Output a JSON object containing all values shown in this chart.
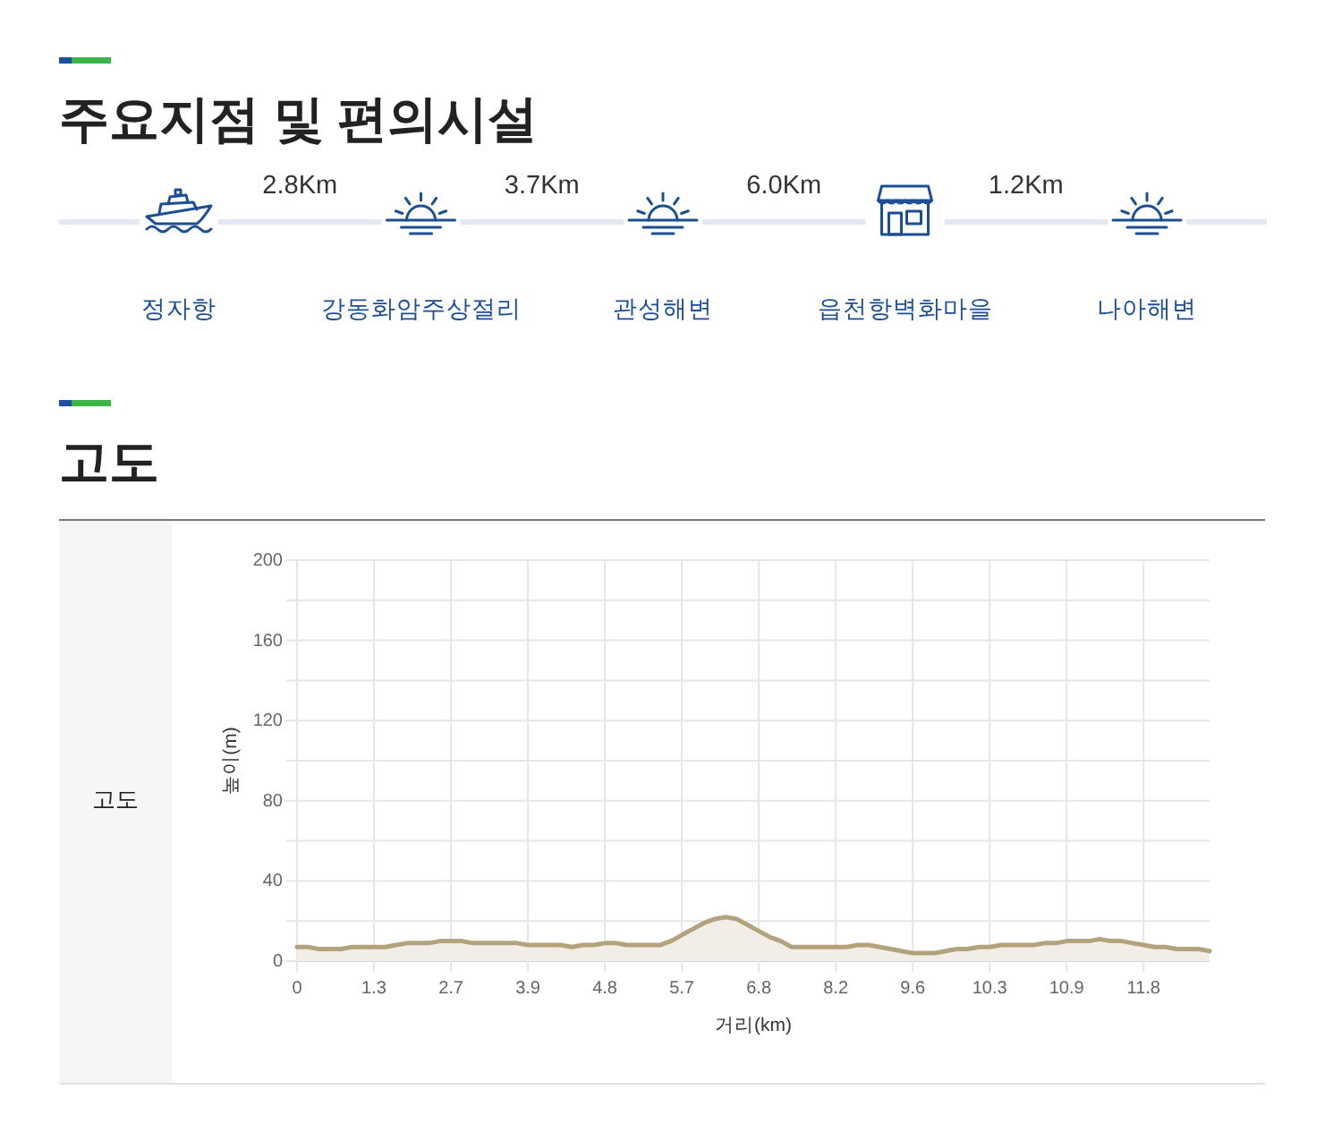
{
  "chart_data": [
    {
      "type": "other",
      "title": "주요지점 및 편의시설",
      "categories": [
        "정자항",
        "강동화암주상절리",
        "관성해변",
        "읍천항벽화마을",
        "나아해변"
      ],
      "annotations": [
        "2.8Km",
        "3.7Km",
        "6.0Km",
        "1.2Km"
      ]
    },
    {
      "type": "area",
      "title": "고도",
      "xlabel": "거리(km)",
      "ylabel": "높이(m)",
      "annotations": [
        "고도"
      ],
      "categories": [
        "0",
        null,
        null,
        null,
        null,
        null,
        null,
        "1.3",
        null,
        null,
        null,
        null,
        null,
        null,
        "2.7",
        null,
        null,
        null,
        null,
        null,
        null,
        "3.9",
        null,
        null,
        null,
        null,
        null,
        null,
        "4.8",
        null,
        null,
        null,
        null,
        null,
        null,
        "5.7",
        null,
        null,
        null,
        null,
        null,
        null,
        "6.8",
        null,
        null,
        null,
        null,
        null,
        null,
        "8.2",
        null,
        null,
        null,
        null,
        null,
        null,
        "9.6",
        null,
        null,
        null,
        null,
        null,
        null,
        "10.3",
        null,
        null,
        null,
        null,
        null,
        null,
        "10.9",
        null,
        null,
        null,
        null,
        null,
        null,
        "11.8",
        null,
        null,
        null,
        null,
        null,
        null
      ],
      "series": [
        {
          "color": "#b4a27c",
          "values": [
            7,
            7,
            6,
            6,
            6,
            7,
            7,
            7,
            7,
            8,
            9,
            9,
            9,
            10,
            10,
            10,
            9,
            9,
            9,
            9,
            9,
            8,
            8,
            8,
            8,
            7,
            8,
            8,
            9,
            9,
            8,
            8,
            8,
            8,
            10,
            13,
            16,
            19,
            21,
            22,
            21,
            18,
            15,
            12,
            10,
            7,
            7,
            7,
            7,
            7,
            7,
            8,
            8,
            7,
            6,
            5,
            4,
            4,
            4,
            5,
            6,
            6,
            7,
            7,
            8,
            8,
            8,
            8,
            9,
            9,
            10,
            10,
            10,
            11,
            10,
            10,
            9,
            8,
            7,
            7,
            6,
            6,
            6,
            5
          ]
        }
      ],
      "ylim": [
        0,
        200
      ],
      "yticks": [
        0,
        {
          "value": 20,
          "label": null
        },
        40,
        {
          "value": 60,
          "label": null
        },
        80,
        {
          "value": 100,
          "label": null
        },
        120,
        {
          "value": 140,
          "label": null
        },
        160,
        {
          "value": 180,
          "label": null
        },
        200
      ],
      "grid": true
    }
  ]
}
